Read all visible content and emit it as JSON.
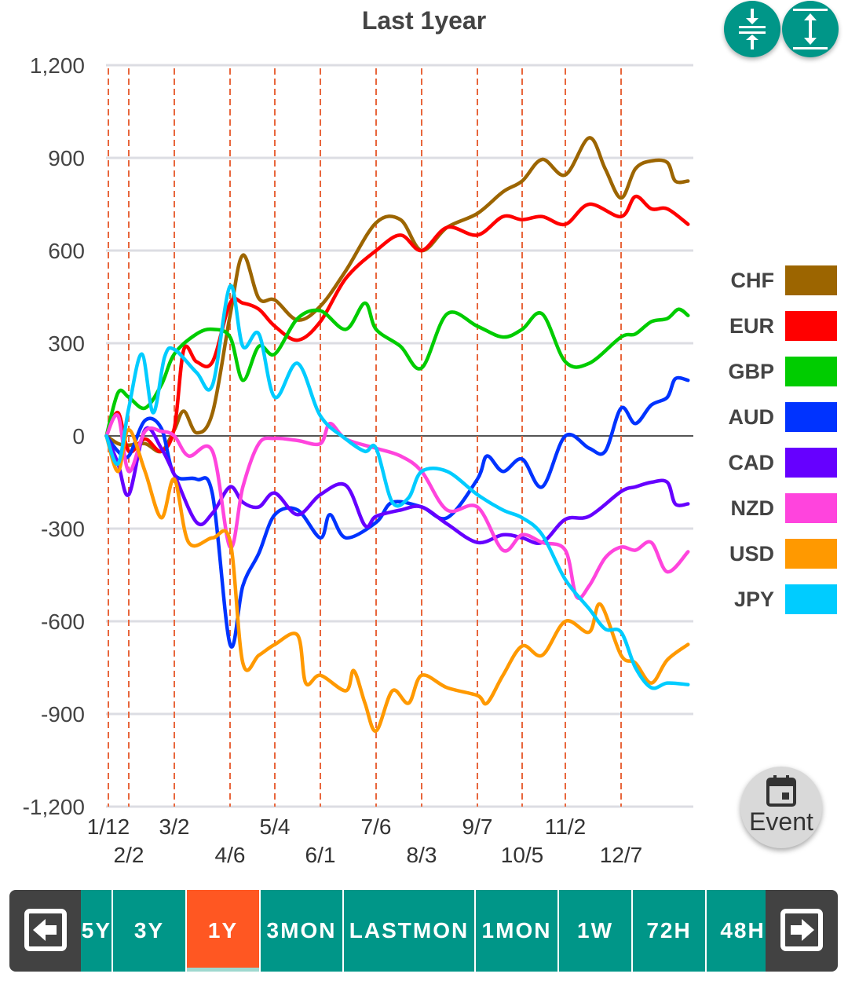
{
  "colors": {
    "accent": "#009688",
    "active_tab": "#ff5722",
    "event_line": "#e8663c",
    "nav_button": "#424242"
  },
  "header": {
    "compress_icon": "compress-vertical-icon",
    "expand_icon": "expand-vertical-icon"
  },
  "event_button": {
    "label": "Event",
    "icon": "calendar-icon"
  },
  "range_tabs": {
    "prev_icon": "arrow-left-box-icon",
    "next_icon": "arrow-right-box-icon",
    "items": [
      {
        "label": "5Y"
      },
      {
        "label": "3Y"
      },
      {
        "label": "1Y",
        "active": true
      },
      {
        "label": "3MON"
      },
      {
        "label": "LASTMON"
      },
      {
        "label": "1MON"
      },
      {
        "label": "1W"
      },
      {
        "label": "72H"
      },
      {
        "label": "48H"
      }
    ]
  },
  "chart_data": {
    "type": "line",
    "title": "Last 1year",
    "xlabel": "",
    "ylabel": "",
    "ylim": [
      -1200,
      1200
    ],
    "yticks": [
      "1,200",
      "900",
      "600",
      "300",
      "0",
      "-300",
      "-600",
      "-900",
      "-1,200"
    ],
    "ytick_values": [
      1200,
      900,
      600,
      300,
      0,
      -300,
      -600,
      -900,
      -1200
    ],
    "xticks": [
      "1/12",
      "2/2",
      "3/2",
      "4/6",
      "5/4",
      "6/1",
      "7/6",
      "8/3",
      "9/7",
      "10/5",
      "11/2",
      "12/7"
    ],
    "event_lines": "dashed vertical at each x tick",
    "grid": true,
    "legend": "right",
    "series": [
      {
        "name": "CHF",
        "color": "#9c6500",
        "points": [
          [
            "1/10",
            0
          ],
          [
            "1/22",
            -25
          ],
          [
            "2/2",
            -30
          ],
          [
            "2/12",
            -25
          ],
          [
            "2/22",
            -50
          ],
          [
            "3/2",
            20
          ],
          [
            "3/8",
            80
          ],
          [
            "3/16",
            10
          ],
          [
            "3/26",
            75
          ],
          [
            "4/6",
            390
          ],
          [
            "4/14",
            585
          ],
          [
            "4/24",
            445
          ],
          [
            "5/4",
            440
          ],
          [
            "5/18",
            375
          ],
          [
            "6/1",
            420
          ],
          [
            "6/17",
            535
          ],
          [
            "7/6",
            690
          ],
          [
            "7/21",
            700
          ],
          [
            "8/3",
            600
          ],
          [
            "8/19",
            675
          ],
          [
            "9/7",
            720
          ],
          [
            "9/23",
            790
          ],
          [
            "10/5",
            825
          ],
          [
            "10/18",
            895
          ],
          [
            "11/2",
            845
          ],
          [
            "11/17",
            965
          ],
          [
            "11/27",
            865
          ],
          [
            "12/7",
            770
          ],
          [
            "12/16",
            865
          ],
          [
            "12/26",
            890
          ],
          [
            "1/5",
            885
          ],
          [
            "1/10",
            825
          ],
          [
            "1/18",
            825
          ]
        ]
      },
      {
        "name": "EUR",
        "color": "#ff0000",
        "points": [
          [
            "1/10",
            0
          ],
          [
            "1/22",
            75
          ],
          [
            "2/2",
            -50
          ],
          [
            "2/12",
            -10
          ],
          [
            "2/22",
            -50
          ],
          [
            "3/2",
            25
          ],
          [
            "3/8",
            280
          ],
          [
            "3/16",
            240
          ],
          [
            "3/26",
            240
          ],
          [
            "4/6",
            430
          ],
          [
            "4/14",
            430
          ],
          [
            "4/24",
            410
          ],
          [
            "5/4",
            355
          ],
          [
            "5/18",
            310
          ],
          [
            "6/1",
            370
          ],
          [
            "6/17",
            510
          ],
          [
            "7/6",
            600
          ],
          [
            "7/21",
            650
          ],
          [
            "8/3",
            600
          ],
          [
            "8/19",
            675
          ],
          [
            "9/7",
            650
          ],
          [
            "9/23",
            710
          ],
          [
            "10/5",
            700
          ],
          [
            "10/18",
            710
          ],
          [
            "11/2",
            685
          ],
          [
            "11/17",
            750
          ],
          [
            "12/7",
            710
          ],
          [
            "12/16",
            775
          ],
          [
            "12/26",
            735
          ],
          [
            "1/5",
            735
          ],
          [
            "1/18",
            685
          ]
        ]
      },
      {
        "name": "GBP",
        "color": "#00cc00",
        "points": [
          [
            "1/10",
            0
          ],
          [
            "1/22",
            140
          ],
          [
            "2/2",
            125
          ],
          [
            "2/12",
            90
          ],
          [
            "2/22",
            165
          ],
          [
            "3/2",
            265
          ],
          [
            "3/16",
            330
          ],
          [
            "3/26",
            345
          ],
          [
            "4/6",
            320
          ],
          [
            "4/14",
            180
          ],
          [
            "4/24",
            290
          ],
          [
            "5/4",
            265
          ],
          [
            "5/18",
            380
          ],
          [
            "6/1",
            405
          ],
          [
            "6/17",
            345
          ],
          [
            "6/29",
            430
          ],
          [
            "7/6",
            345
          ],
          [
            "7/21",
            290
          ],
          [
            "8/3",
            220
          ],
          [
            "8/19",
            395
          ],
          [
            "9/7",
            355
          ],
          [
            "9/23",
            320
          ],
          [
            "10/5",
            345
          ],
          [
            "10/18",
            395
          ],
          [
            "11/2",
            240
          ],
          [
            "11/17",
            235
          ],
          [
            "12/7",
            320
          ],
          [
            "12/16",
            330
          ],
          [
            "12/26",
            370
          ],
          [
            "1/5",
            380
          ],
          [
            "1/12",
            410
          ],
          [
            "1/18",
            390
          ]
        ]
      },
      {
        "name": "AUD",
        "color": "#0033ff",
        "points": [
          [
            "1/10",
            0
          ],
          [
            "1/22",
            -50
          ],
          [
            "2/2",
            -65
          ],
          [
            "2/12",
            50
          ],
          [
            "2/22",
            25
          ],
          [
            "3/2",
            -125
          ],
          [
            "3/16",
            -140
          ],
          [
            "3/26",
            -190
          ],
          [
            "4/6",
            -675
          ],
          [
            "4/14",
            -485
          ],
          [
            "4/24",
            -380
          ],
          [
            "5/4",
            -255
          ],
          [
            "5/18",
            -240
          ],
          [
            "6/1",
            -330
          ],
          [
            "6/7",
            -255
          ],
          [
            "6/17",
            -330
          ],
          [
            "7/6",
            -280
          ],
          [
            "7/16",
            -215
          ],
          [
            "8/3",
            -230
          ],
          [
            "8/19",
            -265
          ],
          [
            "9/7",
            -140
          ],
          [
            "9/13",
            -65
          ],
          [
            "9/23",
            -115
          ],
          [
            "10/5",
            -75
          ],
          [
            "10/18",
            -165
          ],
          [
            "11/2",
            0
          ],
          [
            "11/17",
            -40
          ],
          [
            "11/27",
            -50
          ],
          [
            "12/7",
            90
          ],
          [
            "12/16",
            40
          ],
          [
            "12/26",
            100
          ],
          [
            "1/5",
            125
          ],
          [
            "1/10",
            185
          ],
          [
            "1/18",
            180
          ]
        ]
      },
      {
        "name": "CAD",
        "color": "#6600ff",
        "points": [
          [
            "1/10",
            0
          ],
          [
            "1/22",
            -90
          ],
          [
            "2/2",
            -190
          ],
          [
            "2/12",
            20
          ],
          [
            "2/22",
            -40
          ],
          [
            "3/2",
            -125
          ],
          [
            "3/16",
            -280
          ],
          [
            "3/26",
            -250
          ],
          [
            "4/6",
            -165
          ],
          [
            "4/14",
            -215
          ],
          [
            "4/24",
            -230
          ],
          [
            "5/4",
            -185
          ],
          [
            "5/18",
            -255
          ],
          [
            "6/1",
            -190
          ],
          [
            "6/17",
            -160
          ],
          [
            "6/29",
            -290
          ],
          [
            "7/6",
            -260
          ],
          [
            "7/21",
            -240
          ],
          [
            "8/3",
            -230
          ],
          [
            "8/19",
            -285
          ],
          [
            "9/7",
            -345
          ],
          [
            "9/23",
            -320
          ],
          [
            "10/5",
            -330
          ],
          [
            "10/18",
            -345
          ],
          [
            "11/2",
            -270
          ],
          [
            "11/17",
            -260
          ],
          [
            "12/7",
            -180
          ],
          [
            "12/16",
            -165
          ],
          [
            "12/26",
            -150
          ],
          [
            "1/5",
            -150
          ],
          [
            "1/10",
            -220
          ],
          [
            "1/18",
            -220
          ]
        ]
      },
      {
        "name": "NZD",
        "color": "#ff44dd",
        "points": [
          [
            "1/10",
            0
          ],
          [
            "1/22",
            65
          ],
          [
            "2/2",
            -115
          ],
          [
            "2/12",
            15
          ],
          [
            "2/22",
            15
          ],
          [
            "3/2",
            0
          ],
          [
            "3/11",
            -65
          ],
          [
            "3/26",
            -50
          ],
          [
            "4/6",
            -360
          ],
          [
            "4/14",
            -165
          ],
          [
            "4/24",
            -25
          ],
          [
            "5/4",
            -8
          ],
          [
            "5/18",
            -15
          ],
          [
            "6/1",
            -25
          ],
          [
            "6/7",
            40
          ],
          [
            "6/17",
            -10
          ],
          [
            "7/6",
            -40
          ],
          [
            "7/21",
            -65
          ],
          [
            "8/3",
            -115
          ],
          [
            "8/19",
            -240
          ],
          [
            "9/7",
            -230
          ],
          [
            "9/23",
            -370
          ],
          [
            "10/5",
            -320
          ],
          [
            "10/18",
            -345
          ],
          [
            "11/2",
            -370
          ],
          [
            "11/9",
            -520
          ],
          [
            "11/17",
            -485
          ],
          [
            "11/27",
            -395
          ],
          [
            "12/7",
            -360
          ],
          [
            "12/16",
            -370
          ],
          [
            "12/26",
            -345
          ],
          [
            "1/5",
            -440
          ],
          [
            "1/18",
            -375
          ]
        ]
      },
      {
        "name": "USD",
        "color": "#ff9900",
        "points": [
          [
            "1/10",
            0
          ],
          [
            "1/22",
            -115
          ],
          [
            "2/2",
            20
          ],
          [
            "2/12",
            -115
          ],
          [
            "2/22",
            -265
          ],
          [
            "3/2",
            -140
          ],
          [
            "3/11",
            -345
          ],
          [
            "3/26",
            -330
          ],
          [
            "4/6",
            -340
          ],
          [
            "4/14",
            -735
          ],
          [
            "4/24",
            -710
          ],
          [
            "5/4",
            -675
          ],
          [
            "5/18",
            -645
          ],
          [
            "5/23",
            -800
          ],
          [
            "6/1",
            -775
          ],
          [
            "6/17",
            -825
          ],
          [
            "6/22",
            -760
          ],
          [
            "6/29",
            -865
          ],
          [
            "7/6",
            -955
          ],
          [
            "7/16",
            -825
          ],
          [
            "7/26",
            -865
          ],
          [
            "8/3",
            -775
          ],
          [
            "8/19",
            -815
          ],
          [
            "9/7",
            -840
          ],
          [
            "9/13",
            -865
          ],
          [
            "9/23",
            -775
          ],
          [
            "10/5",
            -680
          ],
          [
            "10/18",
            -710
          ],
          [
            "11/2",
            -600
          ],
          [
            "11/17",
            -635
          ],
          [
            "11/24",
            -545
          ],
          [
            "12/7",
            -710
          ],
          [
            "12/16",
            -735
          ],
          [
            "12/26",
            -800
          ],
          [
            "1/5",
            -725
          ],
          [
            "1/18",
            -675
          ]
        ]
      },
      {
        "name": "JPY",
        "color": "#00ccff",
        "points": [
          [
            "1/10",
            0
          ],
          [
            "1/22",
            -90
          ],
          [
            "2/2",
            90
          ],
          [
            "2/10",
            265
          ],
          [
            "2/17",
            75
          ],
          [
            "2/24",
            255
          ],
          [
            "3/2",
            280
          ],
          [
            "3/16",
            205
          ],
          [
            "3/26",
            165
          ],
          [
            "4/6",
            485
          ],
          [
            "4/14",
            290
          ],
          [
            "4/24",
            330
          ],
          [
            "5/4",
            125
          ],
          [
            "5/18",
            235
          ],
          [
            "6/1",
            65
          ],
          [
            "6/17",
            -10
          ],
          [
            "6/29",
            -50
          ],
          [
            "7/6",
            -40
          ],
          [
            "7/16",
            -215
          ],
          [
            "7/26",
            -200
          ],
          [
            "8/3",
            -115
          ],
          [
            "8/19",
            -115
          ],
          [
            "9/7",
            -190
          ],
          [
            "9/23",
            -240
          ],
          [
            "10/5",
            -265
          ],
          [
            "10/18",
            -320
          ],
          [
            "11/2",
            -465
          ],
          [
            "11/17",
            -560
          ],
          [
            "11/27",
            -625
          ],
          [
            "12/7",
            -635
          ],
          [
            "12/16",
            -750
          ],
          [
            "12/26",
            -815
          ],
          [
            "1/5",
            -800
          ],
          [
            "1/18",
            -805
          ]
        ]
      }
    ]
  }
}
